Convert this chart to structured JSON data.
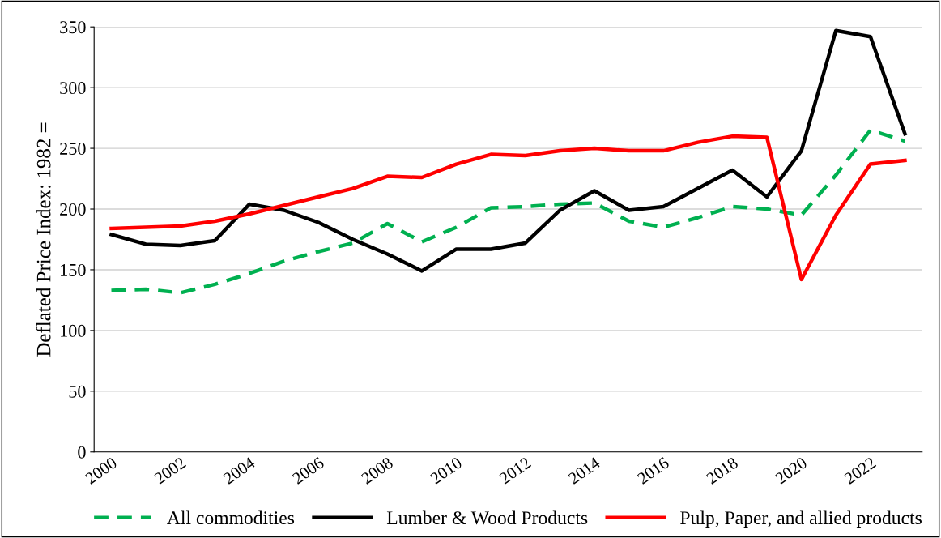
{
  "chart_data": {
    "type": "line",
    "ylabel": "Deflated Price Index: 1982 =",
    "categories": [
      "2000",
      null,
      "2002",
      null,
      "2004",
      null,
      "2006",
      null,
      "2008",
      null,
      "2010",
      null,
      "2012",
      null,
      "2014",
      null,
      "2016",
      null,
      "2018",
      null,
      "2020",
      null,
      "2022",
      null
    ],
    "series": [
      {
        "name": "All commodities",
        "color": "#00b050",
        "line_style": "dashed",
        "values": [
          133,
          134,
          131,
          138,
          147,
          157,
          165,
          172,
          188,
          173,
          185,
          201,
          202,
          204,
          205,
          190,
          185,
          193,
          202,
          200,
          195,
          228,
          265,
          256
        ]
      },
      {
        "name": "Lumber & Wood Products",
        "color": "#000000",
        "line_style": "solid",
        "values": [
          179,
          171,
          170,
          174,
          204,
          199,
          189,
          175,
          163,
          149,
          167,
          167,
          172,
          199,
          215,
          199,
          202,
          217,
          232,
          210,
          248,
          347,
          342,
          262
        ]
      },
      {
        "name": "Pulp, Paper, and allied products",
        "color": "#ff0000",
        "line_style": "solid",
        "values": [
          184,
          185,
          186,
          190,
          196,
          203,
          210,
          217,
          227,
          226,
          237,
          245,
          244,
          248,
          250,
          248,
          248,
          255,
          260,
          259,
          142,
          195,
          237,
          240
        ]
      }
    ],
    "ylim": [
      0,
      350
    ],
    "yticks": [
      0,
      50,
      100,
      150,
      200,
      250,
      300,
      350
    ],
    "grid": "y",
    "legend": "bottom",
    "marker": "none"
  }
}
